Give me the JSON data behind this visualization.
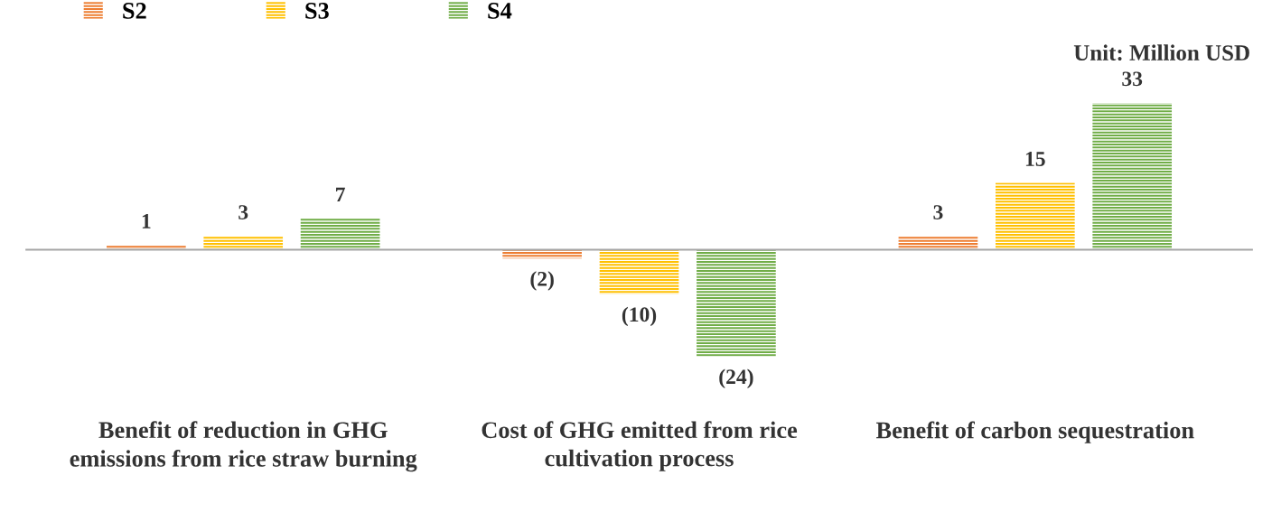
{
  "chart_data": {
    "type": "bar",
    "categories": [
      "Benefit of reduction in GHG emissions from rice straw burning",
      "Cost of GHG emitted from rice cultivation process",
      "Benefit of carbon sequestration"
    ],
    "series": [
      {
        "name": "S2",
        "color": "#ed7d31",
        "values": [
          1,
          -2,
          3
        ],
        "value_labels": [
          "1",
          "(2)",
          "3"
        ]
      },
      {
        "name": "S3",
        "color": "#ffc000",
        "values": [
          3,
          -10,
          15
        ],
        "value_labels": [
          "3",
          "(10)",
          "15"
        ]
      },
      {
        "name": "S4",
        "color": "#70ad47",
        "values": [
          7,
          -24,
          33
        ],
        "value_labels": [
          "7",
          "(24)",
          "33"
        ]
      }
    ],
    "annotations": [
      "Unit: Million USD"
    ],
    "legend": "top left",
    "grid": false
  }
}
